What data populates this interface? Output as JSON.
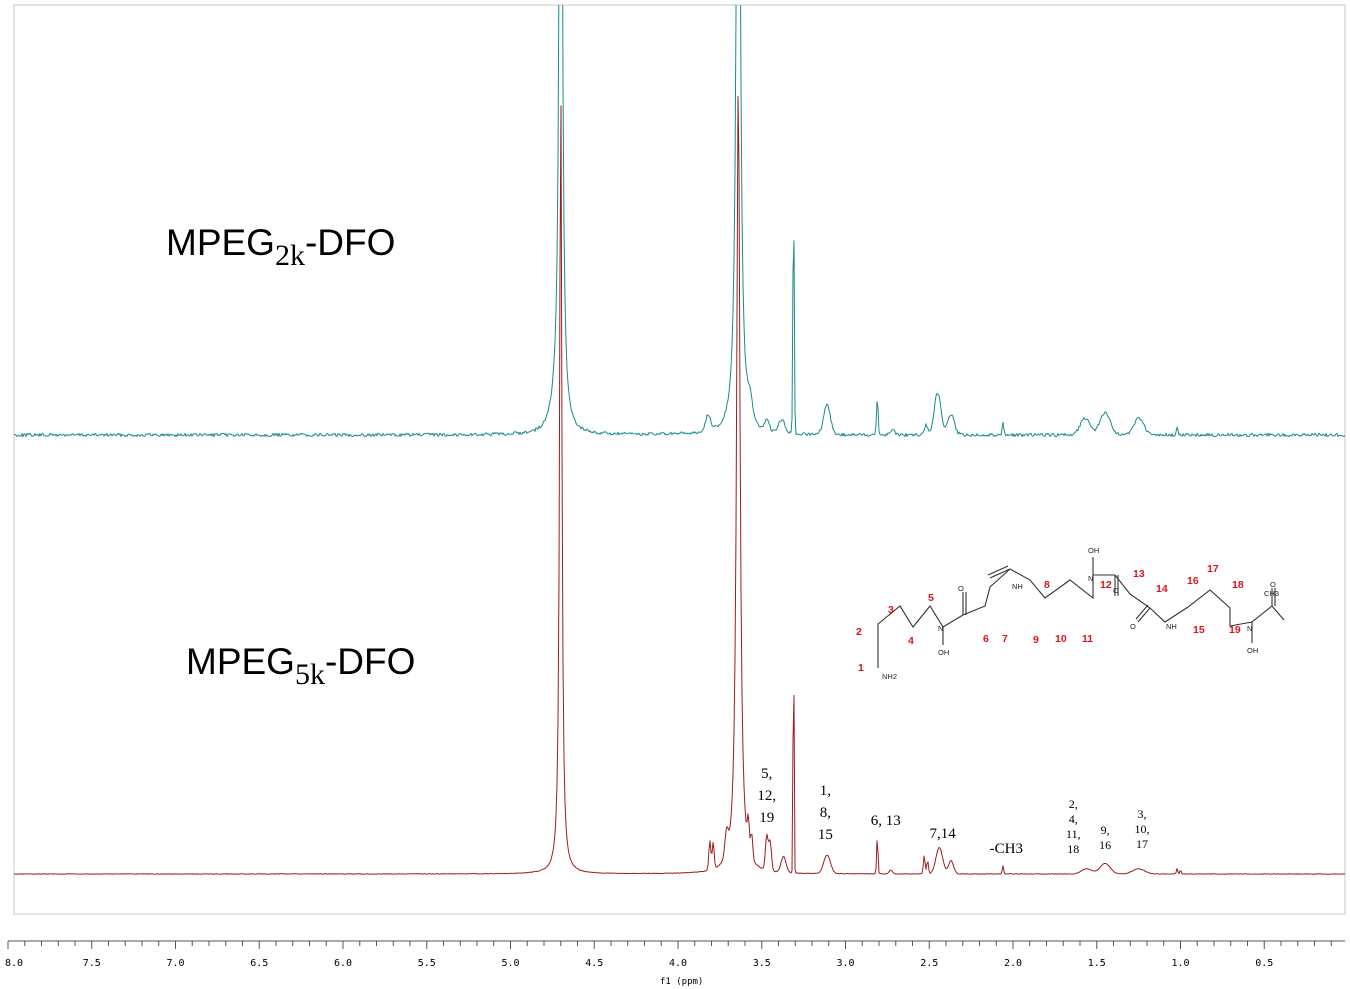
{
  "chart_data": {
    "type": "line",
    "title": "",
    "xlabel": "f1 (ppm)",
    "ylabel": "",
    "xlim": [
      8.0,
      0.0
    ],
    "x_reversed": true,
    "grid": false,
    "ticks": [
      "8.0",
      "7.5",
      "7.0",
      "6.5",
      "6.0",
      "5.5",
      "5.0",
      "4.5",
      "4.0",
      "3.5",
      "3.0",
      "2.5",
      "2.0",
      "1.5",
      "1.0",
      "0.5"
    ],
    "colors": {
      "top": "#1a8a8a",
      "bottom": "#9b1c20"
    },
    "series": [
      {
        "name": "MPEG2k-DFO",
        "label_main": "MPEG",
        "label_sub": "2k",
        "label_tail": "-DFO",
        "peaks": [
          {
            "x": 4.7,
            "h": 3.0,
            "w": 0.01,
            "shape": "lorentz"
          },
          {
            "x": 4.74,
            "h": 0.05,
            "w": 0.03,
            "shape": "lorentz"
          },
          {
            "x": 3.64,
            "h": 3.0,
            "w": 0.012,
            "shape": "lorentz"
          },
          {
            "x": 3.82,
            "h": 0.05,
            "w": 0.015,
            "shape": "gauss"
          },
          {
            "x": 3.57,
            "h": 0.06,
            "w": 0.015,
            "shape": "gauss"
          },
          {
            "x": 3.47,
            "h": 0.03,
            "w": 0.015,
            "shape": "gauss"
          },
          {
            "x": 3.38,
            "h": 0.04,
            "w": 0.02,
            "shape": "gauss"
          },
          {
            "x": 3.31,
            "h": 0.72,
            "w": 0.004,
            "shape": "gauss"
          },
          {
            "x": 3.11,
            "h": 0.09,
            "w": 0.02,
            "shape": "gauss"
          },
          {
            "x": 2.81,
            "h": 0.11,
            "w": 0.005,
            "shape": "gauss"
          },
          {
            "x": 2.72,
            "h": 0.015,
            "w": 0.015,
            "shape": "gauss"
          },
          {
            "x": 2.52,
            "h": 0.03,
            "w": 0.01,
            "shape": "gauss"
          },
          {
            "x": 2.45,
            "h": 0.13,
            "w": 0.02,
            "shape": "gauss"
          },
          {
            "x": 2.37,
            "h": 0.06,
            "w": 0.02,
            "shape": "gauss"
          },
          {
            "x": 2.06,
            "h": 0.04,
            "w": 0.005,
            "shape": "gauss"
          },
          {
            "x": 1.57,
            "h": 0.05,
            "w": 0.03,
            "shape": "gauss"
          },
          {
            "x": 1.45,
            "h": 0.07,
            "w": 0.03,
            "shape": "gauss"
          },
          {
            "x": 1.25,
            "h": 0.05,
            "w": 0.03,
            "shape": "gauss"
          },
          {
            "x": 1.02,
            "h": 0.03,
            "w": 0.004,
            "shape": "gauss"
          }
        ]
      },
      {
        "name": "MPEG5k-DFO",
        "label_main": "MPEG",
        "label_sub": "5k",
        "label_tail": "-DFO",
        "peaks": [
          {
            "x": 4.7,
            "h": 3.0,
            "w": 0.008,
            "shape": "lorentz"
          },
          {
            "x": 3.64,
            "h": 3.0,
            "w": 0.012,
            "shape": "lorentz"
          },
          {
            "x": 3.81,
            "h": 0.11,
            "w": 0.006,
            "shape": "gauss"
          },
          {
            "x": 3.79,
            "h": 0.1,
            "w": 0.006,
            "shape": "gauss"
          },
          {
            "x": 3.71,
            "h": 0.09,
            "w": 0.01,
            "shape": "gauss"
          },
          {
            "x": 3.58,
            "h": 0.11,
            "w": 0.006,
            "shape": "gauss"
          },
          {
            "x": 3.56,
            "h": 0.09,
            "w": 0.006,
            "shape": "gauss"
          },
          {
            "x": 3.47,
            "h": 0.13,
            "w": 0.008,
            "shape": "gauss"
          },
          {
            "x": 3.45,
            "h": 0.11,
            "w": 0.008,
            "shape": "gauss"
          },
          {
            "x": 3.37,
            "h": 0.06,
            "w": 0.015,
            "shape": "gauss"
          },
          {
            "x": 3.31,
            "h": 0.96,
            "w": 0.003,
            "shape": "gauss"
          },
          {
            "x": 3.11,
            "h": 0.07,
            "w": 0.02,
            "shape": "gauss"
          },
          {
            "x": 2.81,
            "h": 0.14,
            "w": 0.004,
            "shape": "gauss"
          },
          {
            "x": 2.73,
            "h": 0.015,
            "w": 0.01,
            "shape": "gauss"
          },
          {
            "x": 2.53,
            "h": 0.07,
            "w": 0.005,
            "shape": "gauss"
          },
          {
            "x": 2.51,
            "h": 0.05,
            "w": 0.005,
            "shape": "gauss"
          },
          {
            "x": 2.44,
            "h": 0.1,
            "w": 0.02,
            "shape": "gauss"
          },
          {
            "x": 2.37,
            "h": 0.05,
            "w": 0.015,
            "shape": "gauss"
          },
          {
            "x": 2.06,
            "h": 0.03,
            "w": 0.004,
            "shape": "gauss"
          },
          {
            "x": 1.56,
            "h": 0.02,
            "w": 0.03,
            "shape": "gauss"
          },
          {
            "x": 1.45,
            "h": 0.04,
            "w": 0.03,
            "shape": "gauss"
          },
          {
            "x": 1.25,
            "h": 0.02,
            "w": 0.035,
            "shape": "gauss"
          },
          {
            "x": 1.02,
            "h": 0.02,
            "w": 0.004,
            "shape": "gauss"
          },
          {
            "x": 1.0,
            "h": 0.015,
            "w": 0.004,
            "shape": "gauss"
          }
        ]
      }
    ],
    "annotations": [
      {
        "x": 3.47,
        "lines": [
          "5,",
          "12,",
          "19"
        ],
        "size": "large"
      },
      {
        "x": 3.12,
        "lines": [
          "1,",
          "8,",
          "15"
        ],
        "size": "large"
      },
      {
        "x": 2.76,
        "lines": [
          "6, 13"
        ],
        "size": "large"
      },
      {
        "x": 2.42,
        "lines": [
          "7,14"
        ],
        "size": "large"
      },
      {
        "x": 2.04,
        "lines": [
          "-CH3"
        ],
        "size": "large"
      },
      {
        "x": 1.64,
        "lines": [
          "2,",
          "4,",
          "11,",
          "18"
        ],
        "size": "small"
      },
      {
        "x": 1.45,
        "lines": [
          "9,",
          "16"
        ],
        "size": "small"
      },
      {
        "x": 1.23,
        "lines": [
          "3,",
          "10,",
          "17"
        ],
        "size": "small"
      }
    ],
    "structure": {
      "numbers": [
        "1",
        "2",
        "3",
        "4",
        "5",
        "6",
        "7",
        "8",
        "9",
        "10",
        "11",
        "12",
        "13",
        "14",
        "15",
        "16",
        "17",
        "18",
        "19"
      ],
      "atoms": [
        "NH2",
        "N",
        "OH",
        "O",
        "NH",
        "N",
        "OH",
        "O",
        "O",
        "NH",
        "N",
        "OH",
        "O",
        "CH3"
      ]
    }
  }
}
